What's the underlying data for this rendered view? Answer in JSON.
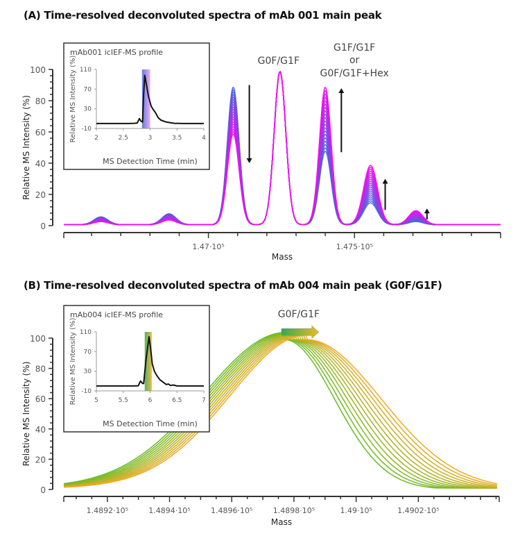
{
  "chart_data": [
    {
      "type": "line",
      "panel": "A",
      "title": "(A) Time-resolved deconvoluted spectra of mAb 001 main peak",
      "xlabel": "Mass",
      "ylabel": "Relative MS Intensity (%)",
      "xlim": [
        146505,
        148000
      ],
      "ylim": [
        0,
        100
      ],
      "yticks": [
        0,
        20,
        40,
        60,
        80,
        100
      ],
      "xtick_labels": [
        {
          "value": 147000,
          "label": "1.47·10⁵"
        },
        {
          "value": 147500,
          "label": "1.475·10⁵"
        }
      ],
      "color_gradient": {
        "start": "#4466dd",
        "end": "#ee11ee",
        "description": "blue (early) to magenta (late) detection time"
      },
      "series_count": 20,
      "peaks": [
        {
          "mass": 146632,
          "height_start": 5,
          "height_end": 2
        },
        {
          "mass": 146865,
          "height_start": 7,
          "height_end": 3
        },
        {
          "mass": 147085,
          "height_start": 88,
          "height_end": 58
        },
        {
          "mass": 147245,
          "height_start": 98,
          "height_end": 98
        },
        {
          "mass": 147400,
          "height_start": 47,
          "height_end": 88
        },
        {
          "mass": 147555,
          "height_start": 14,
          "height_end": 38
        },
        {
          "mass": 147710,
          "height_start": 2,
          "height_end": 9
        }
      ],
      "annotations": [
        {
          "text": "G0F/G1F",
          "mass": 147245
        },
        {
          "text": "G1F/G1F",
          "mass": 147400
        },
        {
          "text": "or",
          "mass": 147400
        },
        {
          "text": "G0F/G1F+Hex",
          "mass": 147400
        }
      ],
      "arrows": [
        {
          "mass": 147140,
          "from": 90,
          "to": 40,
          "direction": "down"
        },
        {
          "mass": 147455,
          "from": 47,
          "to": 88,
          "direction": "up"
        },
        {
          "mass": 147605,
          "from": 10,
          "to": 30,
          "direction": "up"
        },
        {
          "mass": 147748,
          "from": 4,
          "to": 11,
          "direction": "up"
        }
      ],
      "inset": {
        "title": "mAb001 icIEF-MS profile",
        "xlabel": "MS Detection Time (min)",
        "ylabel": "Relative MS Intensity (%)",
        "xlim": [
          2,
          4
        ],
        "ylim": [
          -10,
          110
        ],
        "xticks": [
          2,
          2.5,
          3,
          3.5,
          4
        ],
        "yticks": [
          -10,
          30,
          70,
          110
        ],
        "highlight_range": [
          2.85,
          3.0
        ],
        "highlight_colors": [
          "#4466dd",
          "#ee99ee"
        ],
        "profile": [
          [
            2,
            0
          ],
          [
            2.6,
            0
          ],
          [
            2.7,
            0.5
          ],
          [
            2.76,
            1
          ],
          [
            2.8,
            10
          ],
          [
            2.83,
            5
          ],
          [
            2.86,
            3
          ],
          [
            2.88,
            60
          ],
          [
            2.9,
            98
          ],
          [
            2.93,
            80
          ],
          [
            2.97,
            55
          ],
          [
            3.02,
            35
          ],
          [
            3.06,
            28
          ],
          [
            3.1,
            22
          ],
          [
            3.15,
            12
          ],
          [
            3.2,
            7
          ],
          [
            3.3,
            3
          ],
          [
            3.45,
            0.5
          ],
          [
            3.6,
            0
          ],
          [
            4,
            0
          ]
        ]
      }
    },
    {
      "type": "line",
      "panel": "B",
      "title": "(B) Time-resolved deconvoluted spectra of mAb 004 main peak (G0F/G1F)",
      "xlabel": "Mass",
      "ylabel": "Relative MS Intensity (%)",
      "xlim": [
        148906,
        149046
      ],
      "ylim": [
        0,
        100
      ],
      "yticks": [
        0,
        20,
        40,
        60,
        80,
        100
      ],
      "xtick_labels": [
        {
          "value": 148920,
          "label": "1.4892·10⁵"
        },
        {
          "value": 148940,
          "label": "1.4894·10⁵"
        },
        {
          "value": 148960,
          "label": "1.4896·10⁵"
        },
        {
          "value": 148980,
          "label": "1.4898·10⁵"
        },
        {
          "value": 149000,
          "label": "1.49·10⁵"
        },
        {
          "value": 149020,
          "label": "1.4902·10⁵"
        }
      ],
      "color_gradient": {
        "start": "#66bb22",
        "end": "#eeaa22",
        "description": "green (early) to orange (late) detection time"
      },
      "series_count": 12,
      "peak_center_start": 148977,
      "peak_center_end": 148984,
      "peak_height": 99,
      "annotations": [
        {
          "text": "G0F/G1F",
          "mass": 148982
        }
      ],
      "shift_arrow": {
        "from_mass": 148976,
        "to_mass": 148988,
        "y": 104,
        "colors": [
          "#33aa55",
          "#eebb22"
        ]
      },
      "inset": {
        "title": "mAb004 icIEF-MS profile",
        "xlabel": "MS Detection Time (min)",
        "ylabel": "Relative MS Intensity (%)",
        "xlim": [
          5,
          7
        ],
        "ylim": [
          -10,
          110
        ],
        "xticks": [
          5,
          5.5,
          6,
          6.5,
          7
        ],
        "yticks": [
          -10,
          30,
          70,
          110
        ],
        "highlight_range": [
          5.9,
          6.03
        ],
        "highlight_colors": [
          "#33aa44",
          "#eeaa22"
        ],
        "profile": [
          [
            5,
            0
          ],
          [
            5.7,
            0
          ],
          [
            5.78,
            0.5
          ],
          [
            5.82,
            10
          ],
          [
            5.86,
            5
          ],
          [
            5.88,
            5
          ],
          [
            5.92,
            50
          ],
          [
            5.95,
            75
          ],
          [
            5.98,
            100
          ],
          [
            6.01,
            75
          ],
          [
            6.04,
            45
          ],
          [
            6.08,
            30
          ],
          [
            6.12,
            22
          ],
          [
            6.18,
            13
          ],
          [
            6.24,
            8
          ],
          [
            6.3,
            3
          ],
          [
            6.34,
            4
          ],
          [
            6.38,
            1
          ],
          [
            6.43,
            2
          ],
          [
            6.5,
            0
          ],
          [
            7,
            0
          ]
        ]
      }
    }
  ]
}
